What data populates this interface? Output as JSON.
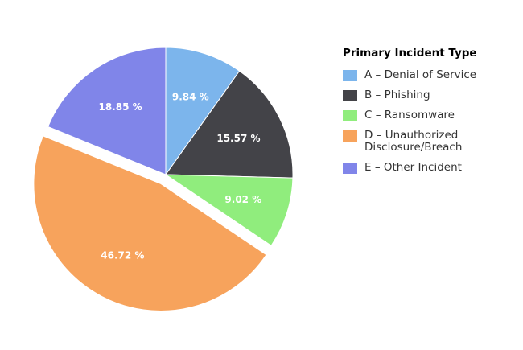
{
  "chart_data": {
    "type": "pie",
    "legend_title": "Primary Incident Type",
    "legend_position": "right",
    "slices": [
      {
        "label": "A – Denial of Service",
        "value": 9.84,
        "value_label": "9.84 %",
        "color": "#7cb5ec",
        "exploded": false
      },
      {
        "label": "B – Phishing",
        "value": 15.57,
        "value_label": "15.57 %",
        "color": "#434348",
        "exploded": false
      },
      {
        "label": "C – Ransomware",
        "value": 9.02,
        "value_label": "9.02 %",
        "color": "#90ed7d",
        "exploded": false
      },
      {
        "label": "D – Unauthorized Disclosure/Breach",
        "value": 46.72,
        "value_label": "46.72 %",
        "color": "#f7a35c",
        "exploded": true
      },
      {
        "label": "E – Other Incident",
        "value": 18.85,
        "value_label": "18.85 %",
        "color": "#8085e9",
        "exploded": false
      }
    ]
  }
}
